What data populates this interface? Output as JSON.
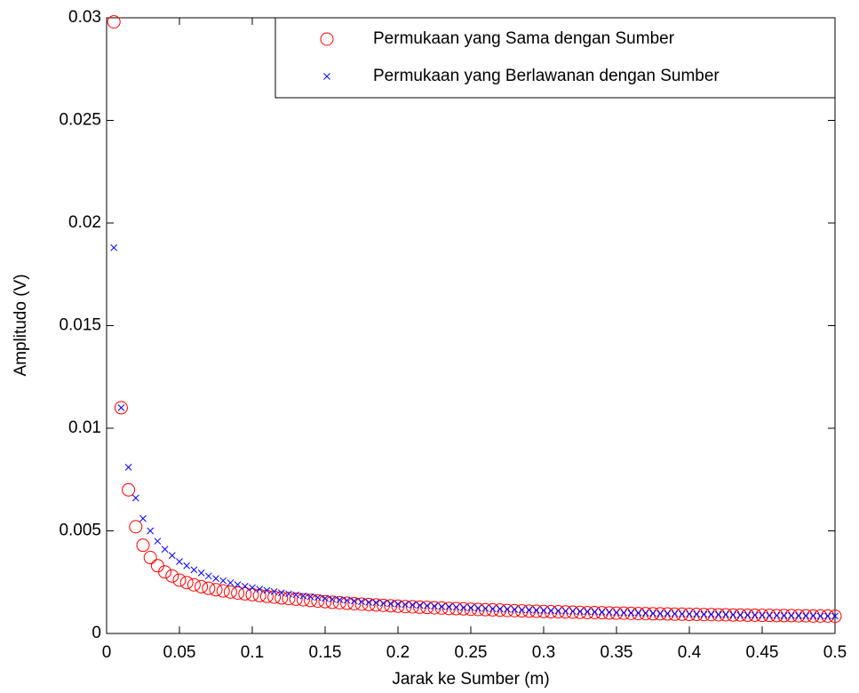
{
  "chart_data": {
    "type": "scatter",
    "xlabel": "Jarak ke Sumber (m)",
    "ylabel": "Amplitudo (V)",
    "x": [
      0.005,
      0.01,
      0.015,
      0.02,
      0.025,
      0.03,
      0.035,
      0.04,
      0.045,
      0.05,
      0.055,
      0.06,
      0.065,
      0.07,
      0.075,
      0.08,
      0.085,
      0.09,
      0.095,
      0.1,
      0.105,
      0.11,
      0.115,
      0.12,
      0.125,
      0.13,
      0.135,
      0.14,
      0.145,
      0.15,
      0.155,
      0.16,
      0.165,
      0.17,
      0.175,
      0.18,
      0.185,
      0.19,
      0.195,
      0.2,
      0.205,
      0.21,
      0.215,
      0.22,
      0.225,
      0.23,
      0.235,
      0.24,
      0.245,
      0.25,
      0.255,
      0.26,
      0.265,
      0.27,
      0.275,
      0.28,
      0.285,
      0.29,
      0.295,
      0.3,
      0.305,
      0.31,
      0.315,
      0.32,
      0.325,
      0.33,
      0.335,
      0.34,
      0.345,
      0.35,
      0.355,
      0.36,
      0.365,
      0.37,
      0.375,
      0.38,
      0.385,
      0.39,
      0.395,
      0.4,
      0.405,
      0.41,
      0.415,
      0.42,
      0.425,
      0.43,
      0.435,
      0.44,
      0.445,
      0.45,
      0.455,
      0.46,
      0.465,
      0.47,
      0.475,
      0.48,
      0.485,
      0.49,
      0.495,
      0.5
    ],
    "series": [
      {
        "name": "Permukaan yang Sama dengan Sumber",
        "color": "#ff0000",
        "marker": "o",
        "values": [
          0.0298,
          0.011,
          0.007,
          0.0052,
          0.0043,
          0.0037,
          0.0033,
          0.003,
          0.0028,
          0.0026,
          0.00248,
          0.00237,
          0.00228,
          0.0022,
          0.00213,
          0.00207,
          0.00202,
          0.00197,
          0.00193,
          0.00189,
          0.00185,
          0.00181,
          0.00177,
          0.00173,
          0.0017,
          0.00167,
          0.00164,
          0.00161,
          0.00158,
          0.00155,
          0.00152,
          0.0015,
          0.00147,
          0.00145,
          0.00143,
          0.00141,
          0.00139,
          0.00137,
          0.00135,
          0.00133,
          0.00131,
          0.0013,
          0.00128,
          0.00127,
          0.00125,
          0.00124,
          0.00122,
          0.00121,
          0.0012,
          0.00118,
          0.00117,
          0.00116,
          0.00115,
          0.00114,
          0.00112,
          0.00111,
          0.0011,
          0.00109,
          0.00108,
          0.00107,
          0.00106,
          0.00106,
          0.00105,
          0.00104,
          0.00103,
          0.00102,
          0.00102,
          0.00101,
          0.001,
          0.00099,
          0.00099,
          0.00098,
          0.00097,
          0.00097,
          0.00096,
          0.00096,
          0.00095,
          0.00094,
          0.00094,
          0.00093,
          0.00093,
          0.00092,
          0.00092,
          0.00091,
          0.00091,
          0.0009,
          0.0009,
          0.00089,
          0.00089,
          0.00088,
          0.00088,
          0.00087,
          0.00087,
          0.00087,
          0.00086,
          0.00086,
          0.00085,
          0.00085,
          0.00085,
          0.00084
        ]
      },
      {
        "name": "Permukaan yang Berlawanan dengan Sumber",
        "color": "#0000ff",
        "marker": "x",
        "values": [
          0.0188,
          0.011,
          0.0081,
          0.0066,
          0.0056,
          0.005,
          0.0045,
          0.0041,
          0.0038,
          0.0035,
          0.0033,
          0.0031,
          0.00295,
          0.0028,
          0.00268,
          0.00257,
          0.00247,
          0.00238,
          0.0023,
          0.00223,
          0.00216,
          0.0021,
          0.00204,
          0.00198,
          0.00193,
          0.00188,
          0.00183,
          0.00179,
          0.00175,
          0.00171,
          0.00167,
          0.00164,
          0.00161,
          0.00158,
          0.00155,
          0.00152,
          0.0015,
          0.00147,
          0.00145,
          0.00143,
          0.00141,
          0.00139,
          0.00137,
          0.00135,
          0.00133,
          0.00131,
          0.0013,
          0.00128,
          0.00126,
          0.00125,
          0.00123,
          0.00122,
          0.0012,
          0.00119,
          0.00118,
          0.00117,
          0.00115,
          0.00114,
          0.00113,
          0.00112,
          0.00111,
          0.0011,
          0.00109,
          0.00108,
          0.00107,
          0.00106,
          0.00105,
          0.00104,
          0.00103,
          0.00102,
          0.00101,
          0.001,
          0.001,
          0.00099,
          0.00098,
          0.00097,
          0.00097,
          0.00096,
          0.00095,
          0.00095,
          0.00094,
          0.00093,
          0.00093,
          0.00092,
          0.00092,
          0.00091,
          0.0009,
          0.0009,
          0.00089,
          0.00089,
          0.00088,
          0.00088,
          0.00087,
          0.00087,
          0.00087,
          0.00086,
          0.00086,
          0.00085,
          0.00085,
          0.00085
        ]
      }
    ],
    "xlim": [
      0,
      0.5
    ],
    "xticks": [
      0,
      0.05,
      0.1,
      0.15,
      0.2,
      0.25,
      0.3,
      0.35,
      0.4,
      0.45,
      0.5
    ],
    "ylim": [
      0,
      0.03
    ],
    "yticks": [
      0,
      0.005,
      0.01,
      0.015,
      0.02,
      0.025,
      0.03
    ],
    "grid": false,
    "legend": "upper right"
  }
}
